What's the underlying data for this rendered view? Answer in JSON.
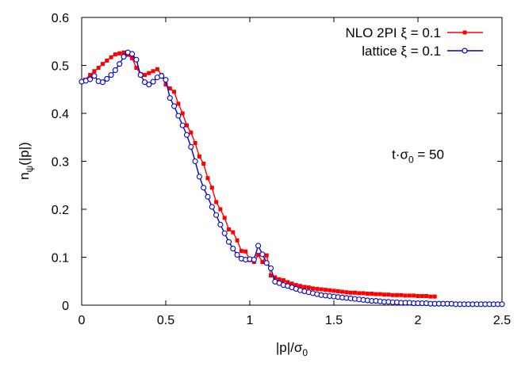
{
  "chart_data": {
    "type": "line",
    "xlabel": {
      "main": "|p|/σ",
      "sub": "0"
    },
    "ylabel": {
      "main": "n",
      "sub": "ψ",
      "tail": "(|p|)"
    },
    "xlim": [
      0,
      2.5
    ],
    "ylim": [
      0,
      0.6
    ],
    "xticks": [
      {
        "v": 0,
        "t": "0"
      },
      {
        "v": 0.5,
        "t": "0.5"
      },
      {
        "v": 1,
        "t": "1"
      },
      {
        "v": 1.5,
        "t": "1.5"
      },
      {
        "v": 2,
        "t": "2"
      },
      {
        "v": 2.5,
        "t": "2.5"
      }
    ],
    "yticks": [
      {
        "v": 0,
        "t": "0"
      },
      {
        "v": 0.1,
        "t": "0.1"
      },
      {
        "v": 0.2,
        "t": "0.2"
      },
      {
        "v": 0.3,
        "t": "0.3"
      },
      {
        "v": 0.4,
        "t": "0.4"
      },
      {
        "v": 0.5,
        "t": "0.5"
      },
      {
        "v": 0.6,
        "t": "0.6"
      }
    ],
    "grid": false,
    "legend_position": "top-right",
    "annotation": {
      "pre": "t·σ",
      "sub": "0",
      "post": " = 50",
      "x": 2.0,
      "y": 0.305
    },
    "series": [
      {
        "name": "NLO 2PI ξ = 0.1",
        "color": "#ff0000",
        "marker": "square",
        "x": [
          0.02,
          0.05,
          0.075,
          0.1,
          0.125,
          0.15,
          0.175,
          0.2,
          0.225,
          0.25,
          0.275,
          0.3,
          0.325,
          0.35,
          0.375,
          0.4,
          0.425,
          0.45,
          0.475,
          0.5,
          0.525,
          0.55,
          0.575,
          0.6,
          0.625,
          0.65,
          0.675,
          0.7,
          0.725,
          0.75,
          0.775,
          0.8,
          0.825,
          0.85,
          0.875,
          0.9,
          0.925,
          0.95,
          0.975,
          1.0,
          1.025,
          1.05,
          1.075,
          1.1,
          1.125,
          1.15,
          1.175,
          1.2,
          1.225,
          1.25,
          1.275,
          1.3,
          1.325,
          1.35,
          1.375,
          1.4,
          1.425,
          1.45,
          1.475,
          1.5,
          1.525,
          1.55,
          1.575,
          1.6,
          1.625,
          1.65,
          1.675,
          1.7,
          1.725,
          1.75,
          1.775,
          1.8,
          1.825,
          1.85,
          1.875,
          1.9,
          1.925,
          1.95,
          1.975,
          2.0,
          2.025,
          2.05,
          2.075,
          2.1
        ],
        "y": [
          0.47,
          0.48,
          0.488,
          0.495,
          0.503,
          0.51,
          0.517,
          0.523,
          0.525,
          0.527,
          0.522,
          0.515,
          0.495,
          0.482,
          0.48,
          0.484,
          0.488,
          0.492,
          0.48,
          0.46,
          0.452,
          0.445,
          0.42,
          0.4,
          0.375,
          0.36,
          0.338,
          0.31,
          0.295,
          0.265,
          0.245,
          0.215,
          0.2,
          0.182,
          0.158,
          0.152,
          0.135,
          0.113,
          0.112,
          0.094,
          0.09,
          0.105,
          0.09,
          0.104,
          0.062,
          0.058,
          0.054,
          0.052,
          0.048,
          0.045,
          0.042,
          0.04,
          0.038,
          0.037,
          0.035,
          0.034,
          0.033,
          0.032,
          0.031,
          0.03,
          0.029,
          0.028,
          0.027,
          0.026,
          0.026,
          0.025,
          0.025,
          0.024,
          0.024,
          0.023,
          0.023,
          0.022,
          0.022,
          0.021,
          0.021,
          0.021,
          0.02,
          0.02,
          0.02,
          0.019,
          0.019,
          0.019,
          0.018,
          0.018
        ]
      },
      {
        "name": "lattice ξ = 0.1",
        "color": "#0000cc",
        "marker": "circle",
        "x": [
          0,
          0.025,
          0.05,
          0.075,
          0.1,
          0.125,
          0.15,
          0.175,
          0.2,
          0.225,
          0.25,
          0.275,
          0.3,
          0.325,
          0.35,
          0.375,
          0.4,
          0.425,
          0.45,
          0.475,
          0.5,
          0.525,
          0.55,
          0.575,
          0.6,
          0.625,
          0.65,
          0.675,
          0.7,
          0.725,
          0.75,
          0.775,
          0.8,
          0.825,
          0.85,
          0.875,
          0.9,
          0.925,
          0.95,
          0.975,
          1.0,
          1.025,
          1.05,
          1.075,
          1.1,
          1.125,
          1.15,
          1.175,
          1.2,
          1.225,
          1.25,
          1.275,
          1.3,
          1.325,
          1.35,
          1.375,
          1.4,
          1.425,
          1.45,
          1.475,
          1.5,
          1.525,
          1.55,
          1.575,
          1.6,
          1.625,
          1.65,
          1.675,
          1.7,
          1.725,
          1.75,
          1.775,
          1.8,
          1.825,
          1.85,
          1.875,
          1.9,
          1.925,
          1.95,
          1.975,
          2.0,
          2.025,
          2.05,
          2.075,
          2.1,
          2.125,
          2.15,
          2.175,
          2.2,
          2.225,
          2.25,
          2.275,
          2.3,
          2.325,
          2.35,
          2.375,
          2.4,
          2.425,
          2.45,
          2.475,
          2.5
        ],
        "y": [
          0.466,
          0.468,
          0.471,
          0.478,
          0.467,
          0.465,
          0.472,
          0.48,
          0.49,
          0.503,
          0.518,
          0.527,
          0.524,
          0.512,
          0.48,
          0.465,
          0.46,
          0.466,
          0.475,
          0.478,
          0.47,
          0.432,
          0.415,
          0.395,
          0.375,
          0.355,
          0.33,
          0.3,
          0.268,
          0.245,
          0.226,
          0.205,
          0.188,
          0.168,
          0.15,
          0.132,
          0.118,
          0.105,
          0.097,
          0.095,
          0.096,
          0.095,
          0.124,
          0.106,
          0.088,
          0.077,
          0.049,
          0.046,
          0.042,
          0.04,
          0.037,
          0.034,
          0.031,
          0.029,
          0.027,
          0.025,
          0.023,
          0.021,
          0.02,
          0.019,
          0.018,
          0.017,
          0.016,
          0.015,
          0.014,
          0.013,
          0.012,
          0.011,
          0.01,
          0.009,
          0.009,
          0.008,
          0.007,
          0.007,
          0.006,
          0.006,
          0.005,
          0.005,
          0.005,
          0.004,
          0.004,
          0.004,
          0.004,
          0.003,
          0.003,
          0.003,
          0.003,
          0.003,
          0.003,
          0.002,
          0.002,
          0.002,
          0.002,
          0.002,
          0.002,
          0.002,
          0.002,
          0.002,
          0.002,
          0.002,
          0.002
        ]
      }
    ]
  }
}
